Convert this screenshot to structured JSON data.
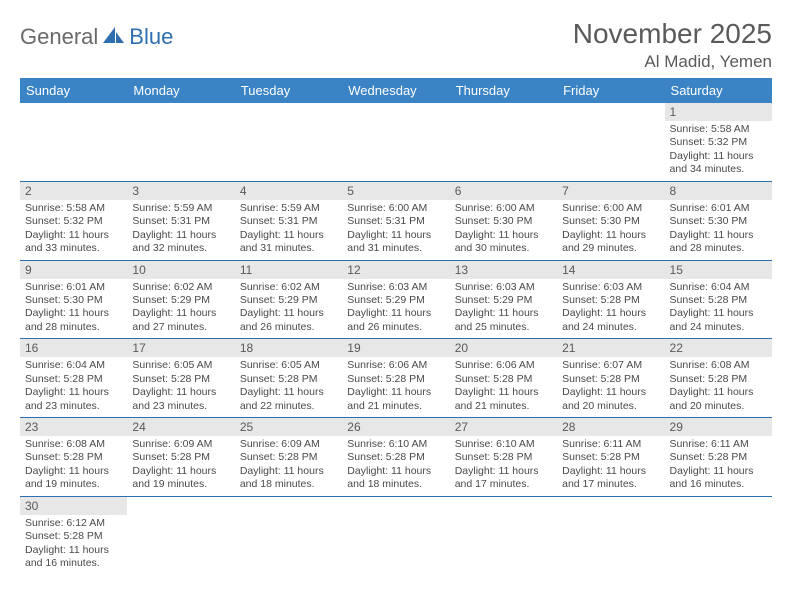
{
  "logo": {
    "part1": "General",
    "part2": "Blue"
  },
  "title": "November 2025",
  "location": "Al Madid, Yemen",
  "colors": {
    "header_bg": "#3a83c5",
    "header_fg": "#ffffff",
    "rule": "#2f6fb0",
    "daynum_bg": "#e7e7e7",
    "text": "#4a4a4a",
    "logo_gray": "#6a6a6a",
    "logo_blue": "#2f6fb0"
  },
  "weekdays": [
    "Sunday",
    "Monday",
    "Tuesday",
    "Wednesday",
    "Thursday",
    "Friday",
    "Saturday"
  ],
  "weeks": [
    [
      null,
      null,
      null,
      null,
      null,
      null,
      {
        "n": "1",
        "sr": "Sunrise: 5:58 AM",
        "ss": "Sunset: 5:32 PM",
        "d1": "Daylight: 11 hours",
        "d2": "and 34 minutes."
      }
    ],
    [
      {
        "n": "2",
        "sr": "Sunrise: 5:58 AM",
        "ss": "Sunset: 5:32 PM",
        "d1": "Daylight: 11 hours",
        "d2": "and 33 minutes."
      },
      {
        "n": "3",
        "sr": "Sunrise: 5:59 AM",
        "ss": "Sunset: 5:31 PM",
        "d1": "Daylight: 11 hours",
        "d2": "and 32 minutes."
      },
      {
        "n": "4",
        "sr": "Sunrise: 5:59 AM",
        "ss": "Sunset: 5:31 PM",
        "d1": "Daylight: 11 hours",
        "d2": "and 31 minutes."
      },
      {
        "n": "5",
        "sr": "Sunrise: 6:00 AM",
        "ss": "Sunset: 5:31 PM",
        "d1": "Daylight: 11 hours",
        "d2": "and 31 minutes."
      },
      {
        "n": "6",
        "sr": "Sunrise: 6:00 AM",
        "ss": "Sunset: 5:30 PM",
        "d1": "Daylight: 11 hours",
        "d2": "and 30 minutes."
      },
      {
        "n": "7",
        "sr": "Sunrise: 6:00 AM",
        "ss": "Sunset: 5:30 PM",
        "d1": "Daylight: 11 hours",
        "d2": "and 29 minutes."
      },
      {
        "n": "8",
        "sr": "Sunrise: 6:01 AM",
        "ss": "Sunset: 5:30 PM",
        "d1": "Daylight: 11 hours",
        "d2": "and 28 minutes."
      }
    ],
    [
      {
        "n": "9",
        "sr": "Sunrise: 6:01 AM",
        "ss": "Sunset: 5:30 PM",
        "d1": "Daylight: 11 hours",
        "d2": "and 28 minutes."
      },
      {
        "n": "10",
        "sr": "Sunrise: 6:02 AM",
        "ss": "Sunset: 5:29 PM",
        "d1": "Daylight: 11 hours",
        "d2": "and 27 minutes."
      },
      {
        "n": "11",
        "sr": "Sunrise: 6:02 AM",
        "ss": "Sunset: 5:29 PM",
        "d1": "Daylight: 11 hours",
        "d2": "and 26 minutes."
      },
      {
        "n": "12",
        "sr": "Sunrise: 6:03 AM",
        "ss": "Sunset: 5:29 PM",
        "d1": "Daylight: 11 hours",
        "d2": "and 26 minutes."
      },
      {
        "n": "13",
        "sr": "Sunrise: 6:03 AM",
        "ss": "Sunset: 5:29 PM",
        "d1": "Daylight: 11 hours",
        "d2": "and 25 minutes."
      },
      {
        "n": "14",
        "sr": "Sunrise: 6:03 AM",
        "ss": "Sunset: 5:28 PM",
        "d1": "Daylight: 11 hours",
        "d2": "and 24 minutes."
      },
      {
        "n": "15",
        "sr": "Sunrise: 6:04 AM",
        "ss": "Sunset: 5:28 PM",
        "d1": "Daylight: 11 hours",
        "d2": "and 24 minutes."
      }
    ],
    [
      {
        "n": "16",
        "sr": "Sunrise: 6:04 AM",
        "ss": "Sunset: 5:28 PM",
        "d1": "Daylight: 11 hours",
        "d2": "and 23 minutes."
      },
      {
        "n": "17",
        "sr": "Sunrise: 6:05 AM",
        "ss": "Sunset: 5:28 PM",
        "d1": "Daylight: 11 hours",
        "d2": "and 23 minutes."
      },
      {
        "n": "18",
        "sr": "Sunrise: 6:05 AM",
        "ss": "Sunset: 5:28 PM",
        "d1": "Daylight: 11 hours",
        "d2": "and 22 minutes."
      },
      {
        "n": "19",
        "sr": "Sunrise: 6:06 AM",
        "ss": "Sunset: 5:28 PM",
        "d1": "Daylight: 11 hours",
        "d2": "and 21 minutes."
      },
      {
        "n": "20",
        "sr": "Sunrise: 6:06 AM",
        "ss": "Sunset: 5:28 PM",
        "d1": "Daylight: 11 hours",
        "d2": "and 21 minutes."
      },
      {
        "n": "21",
        "sr": "Sunrise: 6:07 AM",
        "ss": "Sunset: 5:28 PM",
        "d1": "Daylight: 11 hours",
        "d2": "and 20 minutes."
      },
      {
        "n": "22",
        "sr": "Sunrise: 6:08 AM",
        "ss": "Sunset: 5:28 PM",
        "d1": "Daylight: 11 hours",
        "d2": "and 20 minutes."
      }
    ],
    [
      {
        "n": "23",
        "sr": "Sunrise: 6:08 AM",
        "ss": "Sunset: 5:28 PM",
        "d1": "Daylight: 11 hours",
        "d2": "and 19 minutes."
      },
      {
        "n": "24",
        "sr": "Sunrise: 6:09 AM",
        "ss": "Sunset: 5:28 PM",
        "d1": "Daylight: 11 hours",
        "d2": "and 19 minutes."
      },
      {
        "n": "25",
        "sr": "Sunrise: 6:09 AM",
        "ss": "Sunset: 5:28 PM",
        "d1": "Daylight: 11 hours",
        "d2": "and 18 minutes."
      },
      {
        "n": "26",
        "sr": "Sunrise: 6:10 AM",
        "ss": "Sunset: 5:28 PM",
        "d1": "Daylight: 11 hours",
        "d2": "and 18 minutes."
      },
      {
        "n": "27",
        "sr": "Sunrise: 6:10 AM",
        "ss": "Sunset: 5:28 PM",
        "d1": "Daylight: 11 hours",
        "d2": "and 17 minutes."
      },
      {
        "n": "28",
        "sr": "Sunrise: 6:11 AM",
        "ss": "Sunset: 5:28 PM",
        "d1": "Daylight: 11 hours",
        "d2": "and 17 minutes."
      },
      {
        "n": "29",
        "sr": "Sunrise: 6:11 AM",
        "ss": "Sunset: 5:28 PM",
        "d1": "Daylight: 11 hours",
        "d2": "and 16 minutes."
      }
    ],
    [
      {
        "n": "30",
        "sr": "Sunrise: 6:12 AM",
        "ss": "Sunset: 5:28 PM",
        "d1": "Daylight: 11 hours",
        "d2": "and 16 minutes."
      },
      null,
      null,
      null,
      null,
      null,
      null
    ]
  ]
}
